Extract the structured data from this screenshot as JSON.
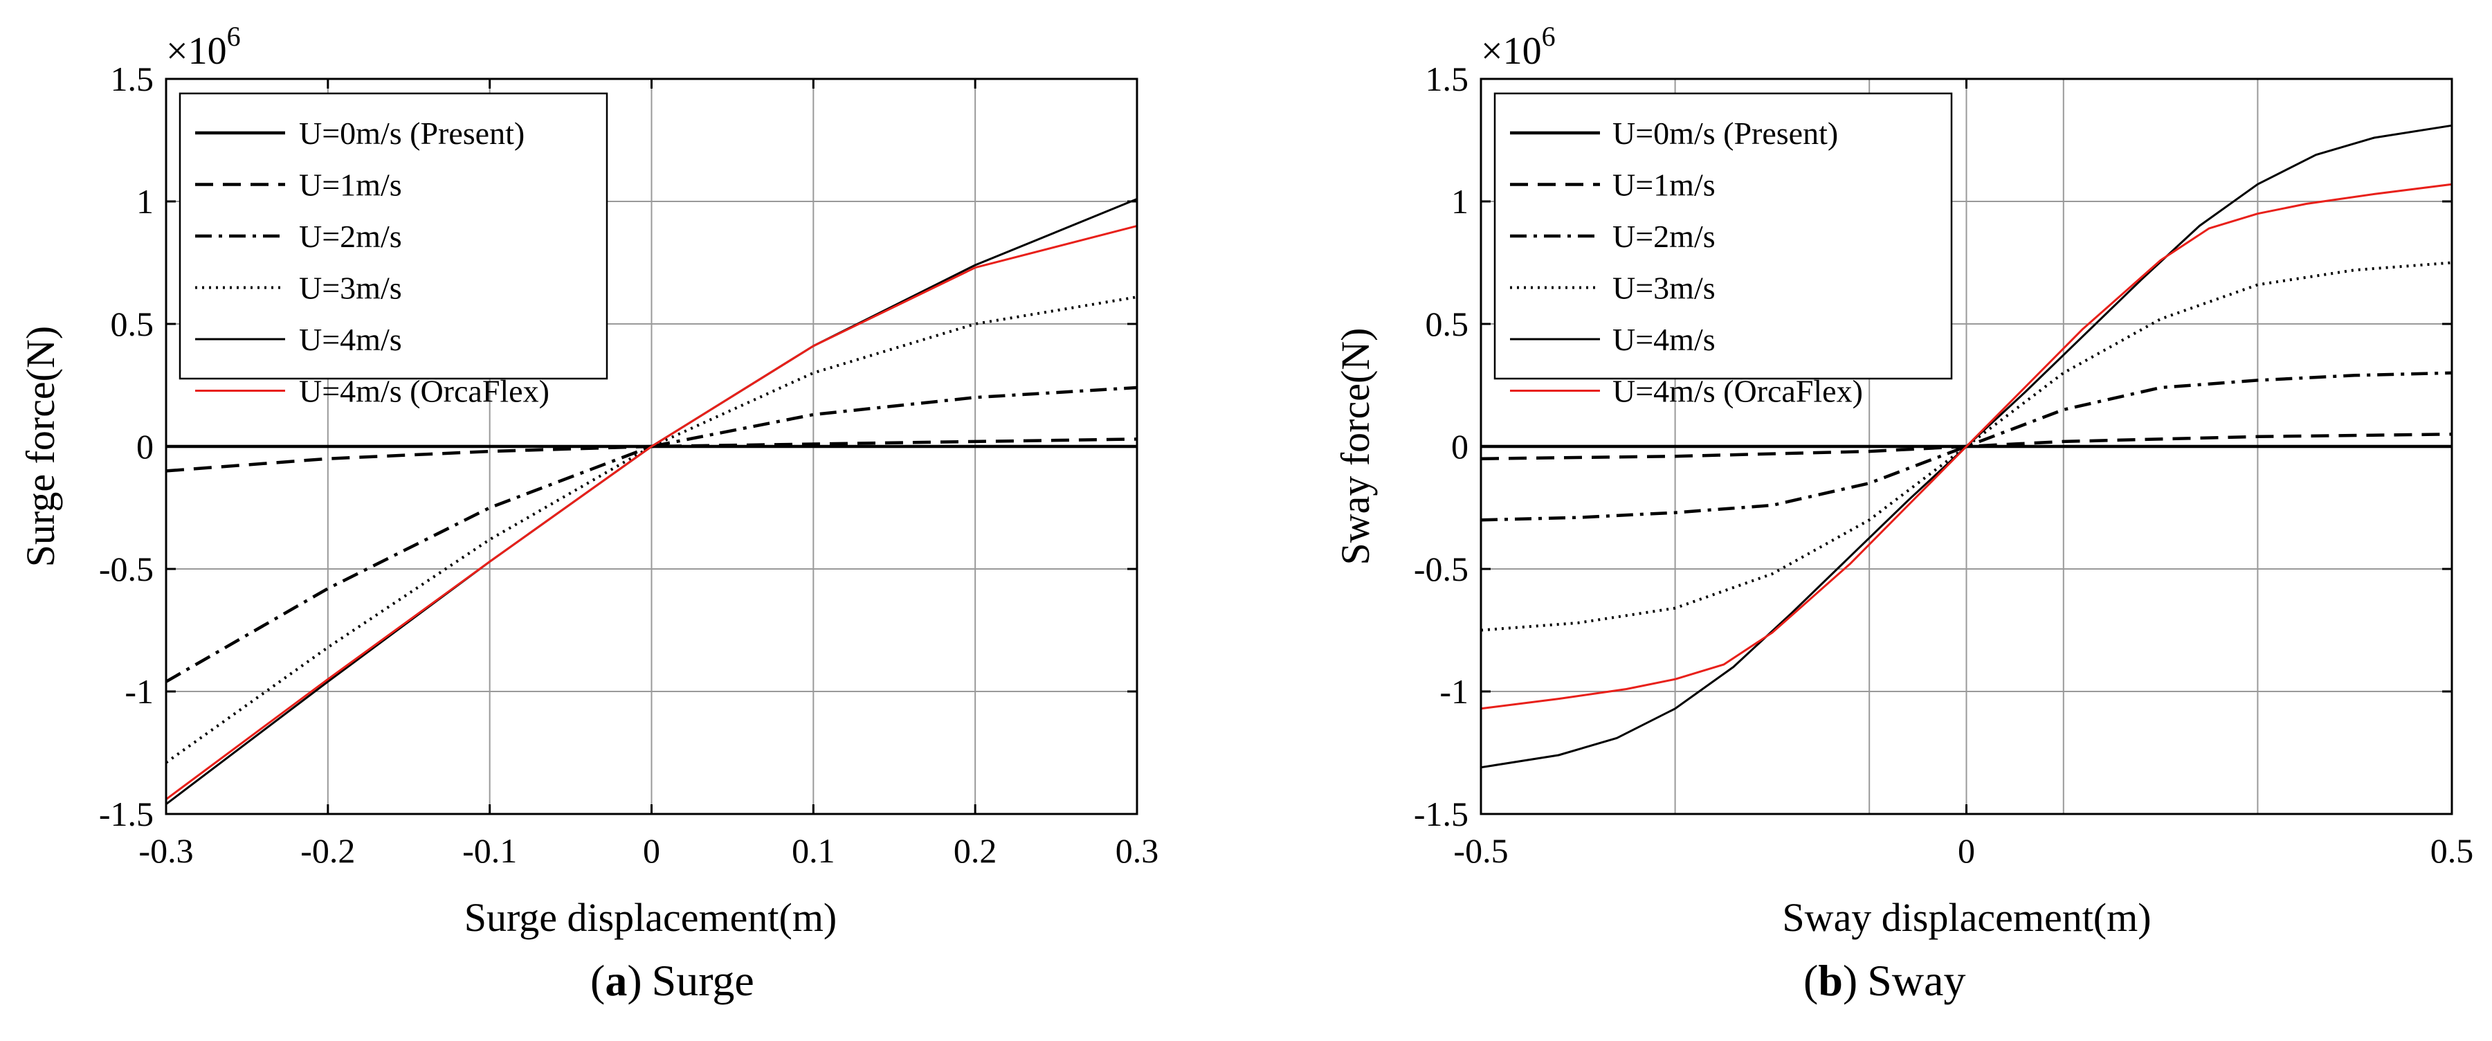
{
  "chart_data": [
    {
      "type": "line",
      "panel": "a",
      "caption_letter": "a",
      "caption_text": "Surge",
      "exponent_label": "×10",
      "exponent": "6",
      "xlabel": "Surge displacement(m)",
      "ylabel": "Surge force(N)",
      "xlim": [
        -0.3,
        0.3
      ],
      "ylim": [
        -1.5,
        1.5
      ],
      "xticks": [
        -0.3,
        -0.2,
        -0.1,
        0,
        0.1,
        0.2,
        0.3
      ],
      "xtick_labels": [
        "-0.3",
        "-0.2",
        "-0.1",
        "0",
        "0.1",
        "0.2",
        "0.3"
      ],
      "yticks": [
        -1.5,
        -1,
        -0.5,
        0,
        0.5,
        1,
        1.5
      ],
      "ytick_labels": [
        "-1.5",
        "-1",
        "-0.5",
        "0",
        "0.5",
        "1",
        "1.5"
      ],
      "grid": true,
      "legend_position": "top-left",
      "series": [
        {
          "name": "U=0m/s (Present)",
          "color": "#000000",
          "style": "solid-thick",
          "x": [
            -0.3,
            0.3
          ],
          "y": [
            0,
            0
          ]
        },
        {
          "name": "U=1m/s",
          "color": "#000000",
          "style": "dashed",
          "x": [
            -0.3,
            -0.2,
            -0.1,
            0,
            0.1,
            0.2,
            0.3
          ],
          "y": [
            -0.1,
            -0.05,
            -0.02,
            0,
            0.01,
            0.02,
            0.03
          ]
        },
        {
          "name": "U=2m/s",
          "color": "#000000",
          "style": "dashdot",
          "x": [
            -0.3,
            -0.2,
            -0.1,
            0,
            0.1,
            0.2,
            0.3
          ],
          "y": [
            -0.96,
            -0.58,
            -0.25,
            0,
            0.13,
            0.2,
            0.24
          ]
        },
        {
          "name": "U=3m/s",
          "color": "#000000",
          "style": "dotted",
          "x": [
            -0.3,
            -0.2,
            -0.1,
            0,
            0.1,
            0.2,
            0.3
          ],
          "y": [
            -1.29,
            -0.82,
            -0.38,
            0,
            0.3,
            0.5,
            0.61
          ]
        },
        {
          "name": "U=4m/s",
          "color": "#000000",
          "style": "solid-thin",
          "x": [
            -0.3,
            -0.2,
            -0.1,
            0,
            0.1,
            0.2,
            0.3
          ],
          "y": [
            -1.46,
            -0.96,
            -0.47,
            0,
            0.41,
            0.74,
            1.01
          ]
        },
        {
          "name": "U=4m/s (OrcaFlex)",
          "color": "#e8201a",
          "style": "solid-thin",
          "x": [
            -0.3,
            -0.2,
            -0.1,
            0,
            0.1,
            0.2,
            0.3
          ],
          "y": [
            -1.44,
            -0.95,
            -0.47,
            0,
            0.41,
            0.73,
            0.9
          ]
        }
      ]
    },
    {
      "type": "line",
      "panel": "b",
      "caption_letter": "b",
      "caption_text": "Sway",
      "exponent_label": "×10",
      "exponent": "6",
      "xlabel": "Sway displacement(m)",
      "ylabel": "Sway force(N)",
      "xlim": [
        -0.5,
        0.5
      ],
      "ylim": [
        -1.5,
        1.5
      ],
      "xticks": [
        -0.5,
        0,
        0.5
      ],
      "xtick_labels": [
        "-0.5",
        "0",
        "0.5"
      ],
      "yticks": [
        -1.5,
        -1,
        -0.5,
        0,
        0.5,
        1,
        1.5
      ],
      "ytick_labels": [
        "-1.5",
        "-1",
        "-0.5",
        "0",
        "0.5",
        "1",
        "1.5"
      ],
      "grid_x": [
        -0.5,
        -0.3,
        -0.1,
        0,
        0.1,
        0.3,
        0.5
      ],
      "grid": true,
      "legend_position": "top-left",
      "series": [
        {
          "name": "U=0m/s (Present)",
          "color": "#000000",
          "style": "solid-thick",
          "x": [
            -0.5,
            0.5
          ],
          "y": [
            0,
            0
          ]
        },
        {
          "name": "U=1m/s",
          "color": "#000000",
          "style": "dashed",
          "x": [
            -0.5,
            -0.3,
            -0.1,
            0,
            0.1,
            0.3,
            0.5
          ],
          "y": [
            -0.05,
            -0.04,
            -0.02,
            0,
            0.02,
            0.04,
            0.05
          ]
        },
        {
          "name": "U=2m/s",
          "color": "#000000",
          "style": "dashdot",
          "x": [
            -0.5,
            -0.4,
            -0.3,
            -0.2,
            -0.1,
            0,
            0.1,
            0.2,
            0.3,
            0.4,
            0.5
          ],
          "y": [
            -0.3,
            -0.29,
            -0.27,
            -0.24,
            -0.15,
            0,
            0.15,
            0.24,
            0.27,
            0.29,
            0.3
          ]
        },
        {
          "name": "U=3m/s",
          "color": "#000000",
          "style": "dotted",
          "x": [
            -0.5,
            -0.4,
            -0.3,
            -0.2,
            -0.1,
            0,
            0.1,
            0.2,
            0.3,
            0.4,
            0.5
          ],
          "y": [
            -0.75,
            -0.72,
            -0.66,
            -0.52,
            -0.3,
            0,
            0.3,
            0.52,
            0.66,
            0.72,
            0.75
          ]
        },
        {
          "name": "U=4m/s",
          "color": "#000000",
          "style": "solid-thin",
          "x": [
            -0.5,
            -0.42,
            -0.36,
            -0.3,
            -0.24,
            -0.18,
            -0.12,
            -0.06,
            0,
            0.06,
            0.12,
            0.18,
            0.24,
            0.3,
            0.36,
            0.42,
            0.5
          ],
          "y": [
            -1.31,
            -1.26,
            -1.19,
            -1.07,
            -0.9,
            -0.68,
            -0.45,
            -0.22,
            0,
            0.22,
            0.45,
            0.68,
            0.9,
            1.07,
            1.19,
            1.26,
            1.31
          ]
        },
        {
          "name": "U=4m/s (OrcaFlex)",
          "color": "#e8201a",
          "style": "solid-thin",
          "x": [
            -0.5,
            -0.42,
            -0.35,
            -0.3,
            -0.25,
            -0.2,
            -0.12,
            -0.06,
            0,
            0.06,
            0.12,
            0.2,
            0.25,
            0.3,
            0.35,
            0.42,
            0.5
          ],
          "y": [
            -1.07,
            -1.03,
            -0.99,
            -0.95,
            -0.89,
            -0.76,
            -0.48,
            -0.24,
            0,
            0.24,
            0.48,
            0.76,
            0.89,
            0.95,
            0.99,
            1.03,
            1.07
          ]
        }
      ]
    }
  ]
}
